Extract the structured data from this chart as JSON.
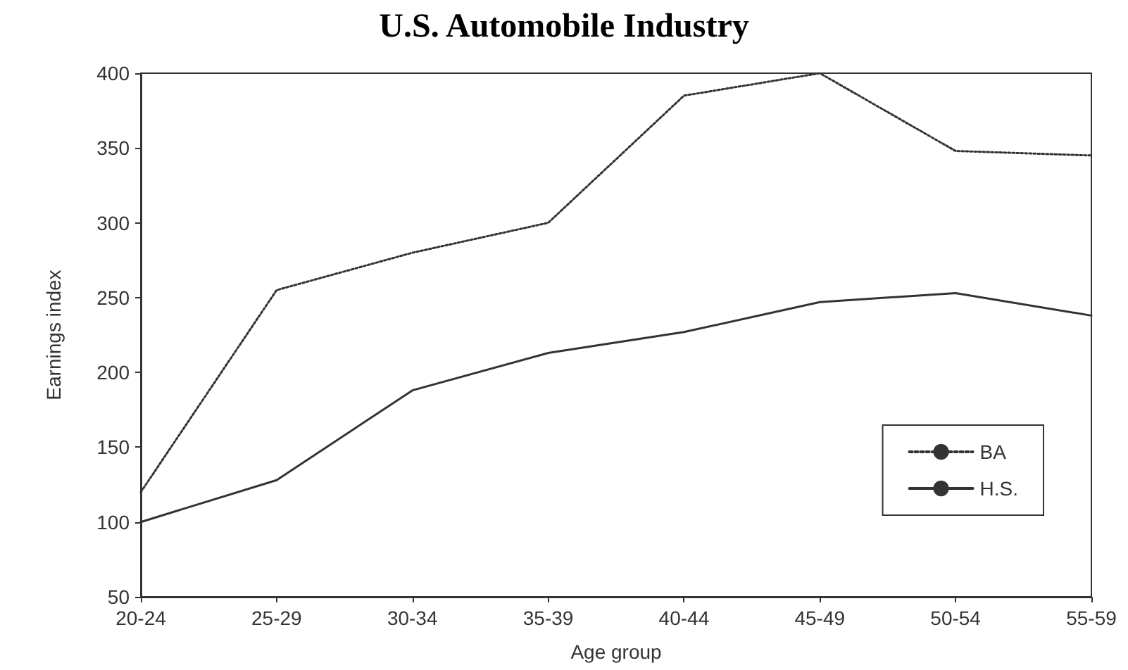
{
  "chart_data": {
    "type": "line",
    "title": "U.S. Automobile Industry",
    "xlabel": "Age group",
    "ylabel": "Earnings index",
    "categories": [
      "20-24",
      "25-29",
      "30-34",
      "35-39",
      "40-44",
      "45-49",
      "50-54",
      "55-59"
    ],
    "series": [
      {
        "name": "BA",
        "color": "#333333",
        "line_style": "dotted",
        "values": [
          120,
          255,
          280,
          300,
          385,
          400,
          348,
          345
        ]
      },
      {
        "name": "H.S.",
        "color": "#333333",
        "line_style": "solid",
        "values": [
          100,
          128,
          188,
          213,
          227,
          247,
          253,
          238
        ]
      }
    ],
    "ylim": [
      50,
      400
    ],
    "yticks": [
      50,
      100,
      150,
      200,
      250,
      300,
      350,
      400
    ],
    "grid": false,
    "legend": "bottom right",
    "marker": "none"
  }
}
